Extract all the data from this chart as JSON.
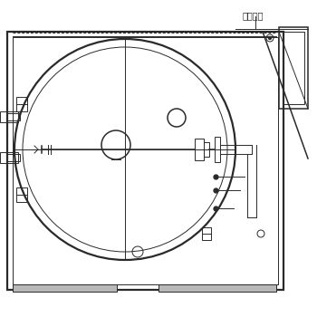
{
  "bg_color": "#ffffff",
  "line_color": "#2a2a2a",
  "title_text": "液体处理",
  "fig_width": 3.5,
  "fig_height": 3.5,
  "dpi": 100
}
